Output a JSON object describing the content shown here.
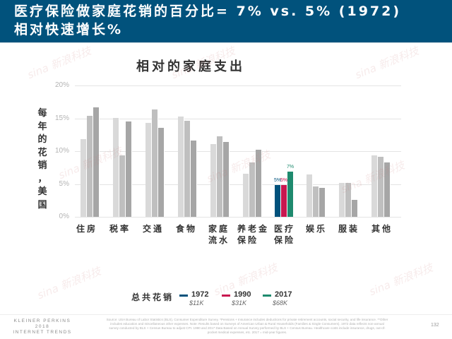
{
  "header": {
    "title_line1": "医疗保险做家庭花销的百分比= 7% vs. 5% (1972)",
    "title_line2": "相对快速增长%"
  },
  "chart_data": {
    "type": "bar",
    "title": "相对的家庭支出",
    "ylabel": "每年的花销，美国",
    "xlabel": "",
    "ylim": [
      0,
      20
    ],
    "yticks": [
      "0%",
      "5%",
      "10%",
      "15%",
      "20%"
    ],
    "grid": true,
    "legend_position": "bottom",
    "legend_title": "总共花销",
    "categories": [
      "住房",
      "税率",
      "交通",
      "食物",
      "家庭流水",
      "养老金保险",
      "医疗保险",
      "娱乐",
      "服装",
      "其他"
    ],
    "category_lines": [
      [
        "住房"
      ],
      [
        "税率"
      ],
      [
        "交通"
      ],
      [
        "食物"
      ],
      [
        "家庭",
        "流水"
      ],
      [
        "养老金",
        "保险"
      ],
      [
        "医疗",
        "保险"
      ],
      [
        "娱乐"
      ],
      [
        "服装"
      ],
      [
        "其他"
      ]
    ],
    "series": [
      {
        "name": "1972",
        "total": "$11K",
        "color": "#01527c",
        "bar_color": "#d9d9d9",
        "values": [
          11.8,
          15.1,
          14.3,
          15.3,
          11.1,
          6.6,
          4.8,
          6.4,
          5.2,
          9.4
        ]
      },
      {
        "name": "1990",
        "total": "$31K",
        "color": "#c8174f",
        "bar_color": "#bfbfbf",
        "values": [
          15.4,
          9.4,
          16.3,
          14.6,
          12.3,
          8.3,
          4.8,
          4.6,
          5.2,
          9.1
        ]
      },
      {
        "name": "2017",
        "total": "$68K",
        "color": "#1e8a6e",
        "bar_color": "#a6a6a6",
        "values": [
          16.7,
          14.5,
          13.5,
          11.6,
          11.4,
          10.2,
          6.9,
          4.4,
          2.6,
          8.3
        ]
      }
    ],
    "highlight_category": "医疗保险",
    "data_labels": {
      "医疗保险": [
        "5%",
        "5%",
        "7%"
      ]
    }
  },
  "footer": {
    "brand_line1": "KLEINER PERKINS",
    "brand_line2": "2018",
    "brand_line3": "INTERNET TRENDS",
    "source": "Source: USA Bureau of Labor Statistics (BLS), Consumer Expenditure Survey. *Pensions + Insurance includes deductions for private retirement accounts, social security, and life insurance. **Other includes education and miscellaneous other expenses. Note: Results based on Surveys of American Urban & Rural Households (Families & Single Consumers). 1972 data reflects non-annual survey conducted by BLS + Census Bureau to adjust CPI. 1990 and 2017 Data Based on Annual Survey performed by BLS + Census Bureau. Healthcare costs include insurance, drugs, out-of-pocket medical expenses, etc. 2017 = mid-year figures.",
    "page_number": "132"
  },
  "watermark": "sina 新浪科技"
}
